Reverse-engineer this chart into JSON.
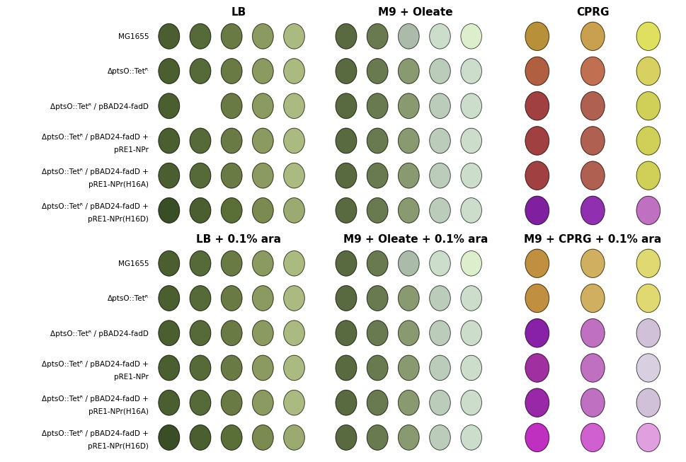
{
  "top_panels": [
    {
      "title": "LB",
      "bg_color": "#7a8c5a",
      "spot_colors": [
        [
          "#4a5e30",
          "#556a38",
          "#6a7a45",
          "#8a9a60",
          "#aaba80"
        ],
        [
          "#4a5e30",
          "#556a38",
          "#6a7a45",
          "#8a9a60",
          "#aaba80"
        ],
        [
          "#4a5e30",
          "#556a a38",
          "#6a7a45",
          "#8a9a60",
          "#aaba80"
        ],
        [
          "#4a5e30",
          "#556a38",
          "#6a7a45",
          "#8a9a60",
          "#aaba80"
        ],
        [
          "#4a5e30",
          "#556a38",
          "#6a7a45",
          "#8a9a60",
          "#aaba80"
        ],
        [
          "#3a4e25",
          "#4a5e30",
          "#5a6e38",
          "#7a8a50",
          "#9aaa70"
        ]
      ]
    },
    {
      "title": "M9 + Oleate",
      "bg_color": "#8a9a70",
      "spot_colors": [
        [
          "#5a6a40",
          "#6a7a50",
          "#aabbaa",
          "#ccddcc",
          "#ddeecc"
        ],
        [
          "#5a6a40",
          "#6a7a50",
          "#8a9a70",
          "#bbccbb",
          "#ccddcc"
        ],
        [
          "#5a6a40",
          "#6a7a50",
          "#8a9a70",
          "#bbccbb",
          "#ccddcc"
        ],
        [
          "#5a6a40",
          "#6a7a50",
          "#8a9a70",
          "#bbccbb",
          "#ccddcc"
        ],
        [
          "#5a6a40",
          "#6a7a50",
          "#8a9a70",
          "#bbccbb",
          "#ccddcc"
        ],
        [
          "#5a6a40",
          "#6a7a50",
          "#8a9a70",
          "#bbccbb",
          "#ccddcc"
        ]
      ]
    },
    {
      "title": "CPRG",
      "bg_color": "#e8e870",
      "spot_colors": [
        [
          "#b8903a",
          "#c8a050",
          "#e0e060"
        ],
        [
          "#b06040",
          "#c07050",
          "#d8d060"
        ],
        [
          "#a04040",
          "#b06050",
          "#d0d058"
        ],
        [
          "#a04040",
          "#b06050",
          "#d0d058"
        ],
        [
          "#a04040",
          "#b06050",
          "#d0d058"
        ],
        [
          "#8020a0",
          "#9030b0",
          "#c070c0"
        ]
      ]
    }
  ],
  "bottom_panels": [
    {
      "title": "LB + 0.1% ara",
      "bg_color": "#7a8c5a",
      "spot_colors": [
        [
          "#4a5e30",
          "#556a38",
          "#6a7a45",
          "#8a9a60",
          "#aaba80"
        ],
        [
          "#4a5e30",
          "#556a38",
          "#6a7a45",
          "#8a9a60",
          "#aaba80"
        ],
        [
          "#4a5e30",
          "#556a38",
          "#6a7a45",
          "#8a9a60",
          "#aaba80"
        ],
        [
          "#4a5e30",
          "#556a38",
          "#6a7a45",
          "#8a9a60",
          "#aaba80"
        ],
        [
          "#4a5e30",
          "#556a38",
          "#6a7a45",
          "#8a9a60",
          "#aaba80"
        ],
        [
          "#3a4e25",
          "#4a5e30",
          "#5a6e38",
          "#7a8a50",
          "#9aaa70"
        ]
      ]
    },
    {
      "title": "M9 + Oleate + 0.1% ara",
      "bg_color": "#8a9a70",
      "spot_colors": [
        [
          "#5a6a40",
          "#6a7a50",
          "#aabbaa",
          "#ccddcc",
          "#ddeecc"
        ],
        [
          "#5a6a40",
          "#6a7a50",
          "#8a9a70",
          "#bbccbb",
          "#ccddcc"
        ],
        [
          "#5a6a40",
          "#6a7a50",
          "#8a9a70",
          "#bbccbb",
          "#ccddcc"
        ],
        [
          "#5a6a40",
          "#6a7a50",
          "#8a9a70",
          "#bbccbb",
          "#ccddcc"
        ],
        [
          "#5a6a40",
          "#6a7a50",
          "#8a9a70",
          "#bbccbb",
          "#ccddcc"
        ],
        [
          "#5a6a40",
          "#6a7a50",
          "#8a9a70",
          "#bbccbb",
          "#ccddcc"
        ]
      ]
    },
    {
      "title": "M9 + CPRG + 0.1% ara",
      "bg_color": "#e8e870",
      "spot_colors": [
        [
          "#c09040",
          "#d0b060",
          "#e0d870"
        ],
        [
          "#c09040",
          "#d0b060",
          "#e0d870"
        ],
        [
          "#8820a8",
          "#c070c0",
          "#d0c0d8"
        ],
        [
          "#a030a0",
          "#c070c0",
          "#d8d0e0"
        ],
        [
          "#9828a8",
          "#c070c0",
          "#d0c0d8"
        ],
        [
          "#c030c0",
          "#d060d0",
          "#e0a0e0"
        ]
      ]
    }
  ],
  "row_labels": [
    "MG1655",
    "ΔptsO::Tetᴿ",
    "ΔptsO::Tetᴿ / pBAD24-fadD",
    "ΔptsO::Tetᴿ / pBAD24-fadD +\npRE1-NPr",
    "ΔptsO::Tetᴿ / pBAD24-fadD +\npRE1-NPr(H16A)",
    "ΔptsO::Tetᴿ / pBAD24-fadD +\npRE1-NPr(H16D)"
  ],
  "white_bg": "#ffffff",
  "title_fontsize": 11,
  "label_fontsize": 8
}
